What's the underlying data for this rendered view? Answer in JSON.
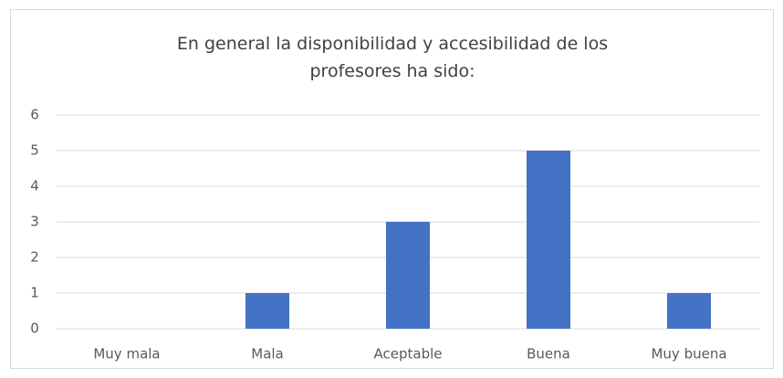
{
  "chart_data": {
    "type": "bar",
    "title": "En general la disponibilidad y accesibilidad de los profesores ha sido:",
    "categories": [
      "Muy mala",
      "Mala",
      "Aceptable",
      "Buena",
      "Muy buena"
    ],
    "values": [
      0,
      1,
      3,
      5,
      1
    ],
    "color": "#4472c4",
    "ylim": [
      0,
      6
    ],
    "yticks": [
      0,
      1,
      2,
      3,
      4,
      5,
      6
    ],
    "grid": true
  }
}
